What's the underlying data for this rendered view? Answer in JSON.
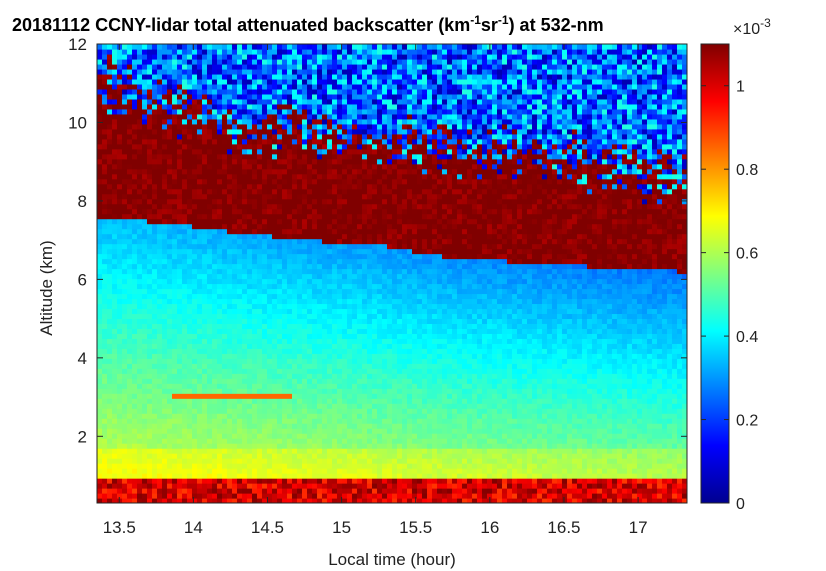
{
  "chart_data": {
    "type": "heatmap",
    "title_prefix": "20181112 CCNY-lidar total attenuated backscatter (km",
    "title_sup1": "-1",
    "title_mid": "sr",
    "title_sup2": "-1",
    "title_suffix": ") at 532-nm",
    "xlabel": "Local time (hour)",
    "ylabel": "Altitude (km)",
    "xlim": [
      13.35,
      17.33
    ],
    "ylim": [
      0.3,
      12
    ],
    "x_ticks": [
      13.5,
      14,
      14.5,
      15,
      15.5,
      16,
      16.5,
      17
    ],
    "x_tick_labels": [
      "13.5",
      "14",
      "14.5",
      "15",
      "15.5",
      "16",
      "16.5",
      "17"
    ],
    "y_ticks": [
      2,
      4,
      6,
      8,
      10,
      12
    ],
    "y_tick_labels": [
      "2",
      "4",
      "6",
      "8",
      "10",
      "12"
    ],
    "colorbar": {
      "colormap": "jet",
      "clim": [
        0,
        0.0011
      ],
      "ticks": [
        0,
        0.2,
        0.4,
        0.6,
        0.8,
        1
      ],
      "tick_labels": [
        "0",
        "0.2",
        "0.4",
        "0.6",
        "0.8",
        "1"
      ],
      "exponent_base": "×10",
      "exponent": "-3"
    },
    "layers": {
      "aerosol_layer_top_km": [
        0.95,
        0.95,
        0.97,
        0.95,
        0.9,
        0.9,
        0.88,
        0.88,
        0.92
      ],
      "aerosol_layer_times": [
        13.35,
        13.8,
        14.3,
        14.8,
        15.3,
        15.8,
        16.3,
        16.8,
        17.33
      ],
      "cloud_base_km": [
        7.6,
        7.45,
        7.2,
        7.0,
        6.85,
        6.5,
        6.45,
        6.3,
        6.2
      ],
      "cloud_base_times": [
        13.35,
        13.8,
        14.3,
        14.8,
        15.3,
        15.8,
        16.3,
        16.8,
        17.33
      ],
      "cloud_top_km": [
        11.0,
        10.5,
        9.8,
        9.8,
        9.5,
        9.4,
        9.2,
        8.8,
        8.6
      ],
      "cloud_top_times": [
        13.35,
        13.8,
        14.3,
        14.8,
        15.3,
        15.8,
        16.3,
        16.8,
        17.33
      ],
      "lofted_layer_km": 3.05,
      "lofted_layer_times": [
        13.85,
        14.65
      ]
    }
  }
}
